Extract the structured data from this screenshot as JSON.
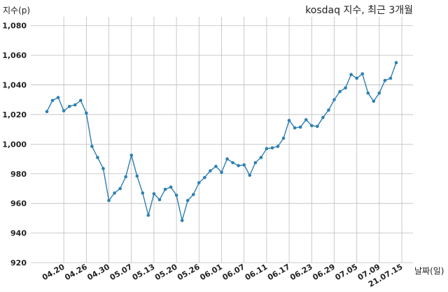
{
  "chart_data": {
    "type": "line",
    "title": "kosdaq 지수, 최근 3개월",
    "ylabel": "지수(p)",
    "xlabel": "날짜(일)",
    "ylim": [
      920,
      1086
    ],
    "yticks": [
      920,
      940,
      960,
      980,
      1000,
      1020,
      1040,
      1060,
      1080
    ],
    "ytick_labels": [
      "920",
      "940",
      "960",
      "980",
      "1,000",
      "1,020",
      "1,040",
      "1,060",
      "1,080"
    ],
    "xticks": [
      "04.20",
      "04.26",
      "04.30",
      "05.07",
      "05.13",
      "05.20",
      "05.26",
      "06.01",
      "06.07",
      "06.11",
      "06.17",
      "06.23",
      "06.29",
      "07.05",
      "07.09",
      "21.07.15"
    ],
    "xtick_index": [
      3,
      7,
      11,
      15,
      19,
      23,
      27,
      31,
      35,
      39,
      43,
      47,
      51,
      55,
      59,
      63
    ],
    "grid": true,
    "line_color": "#2e7fb1",
    "values": [
      1022,
      1029.5,
      1031.5,
      1022.5,
      1025.5,
      1026.5,
      1029.5,
      1021,
      998.5,
      991,
      983.5,
      962,
      967,
      970,
      978,
      992.5,
      978.5,
      967,
      952,
      966.5,
      962.5,
      969.5,
      971,
      965.5,
      948.5,
      962,
      966,
      974,
      977.5,
      982,
      985,
      981,
      990,
      987.5,
      985.5,
      986,
      979,
      987.5,
      991,
      997,
      997.5,
      998.5,
      1004,
      1016,
      1011,
      1011.5,
      1016.5,
      1012.5,
      1012,
      1018,
      1023,
      1030,
      1035.5,
      1038,
      1047,
      1044.5,
      1047.5,
      1034.5,
      1029,
      1034.5,
      1043,
      1044.5,
      1055
    ]
  }
}
